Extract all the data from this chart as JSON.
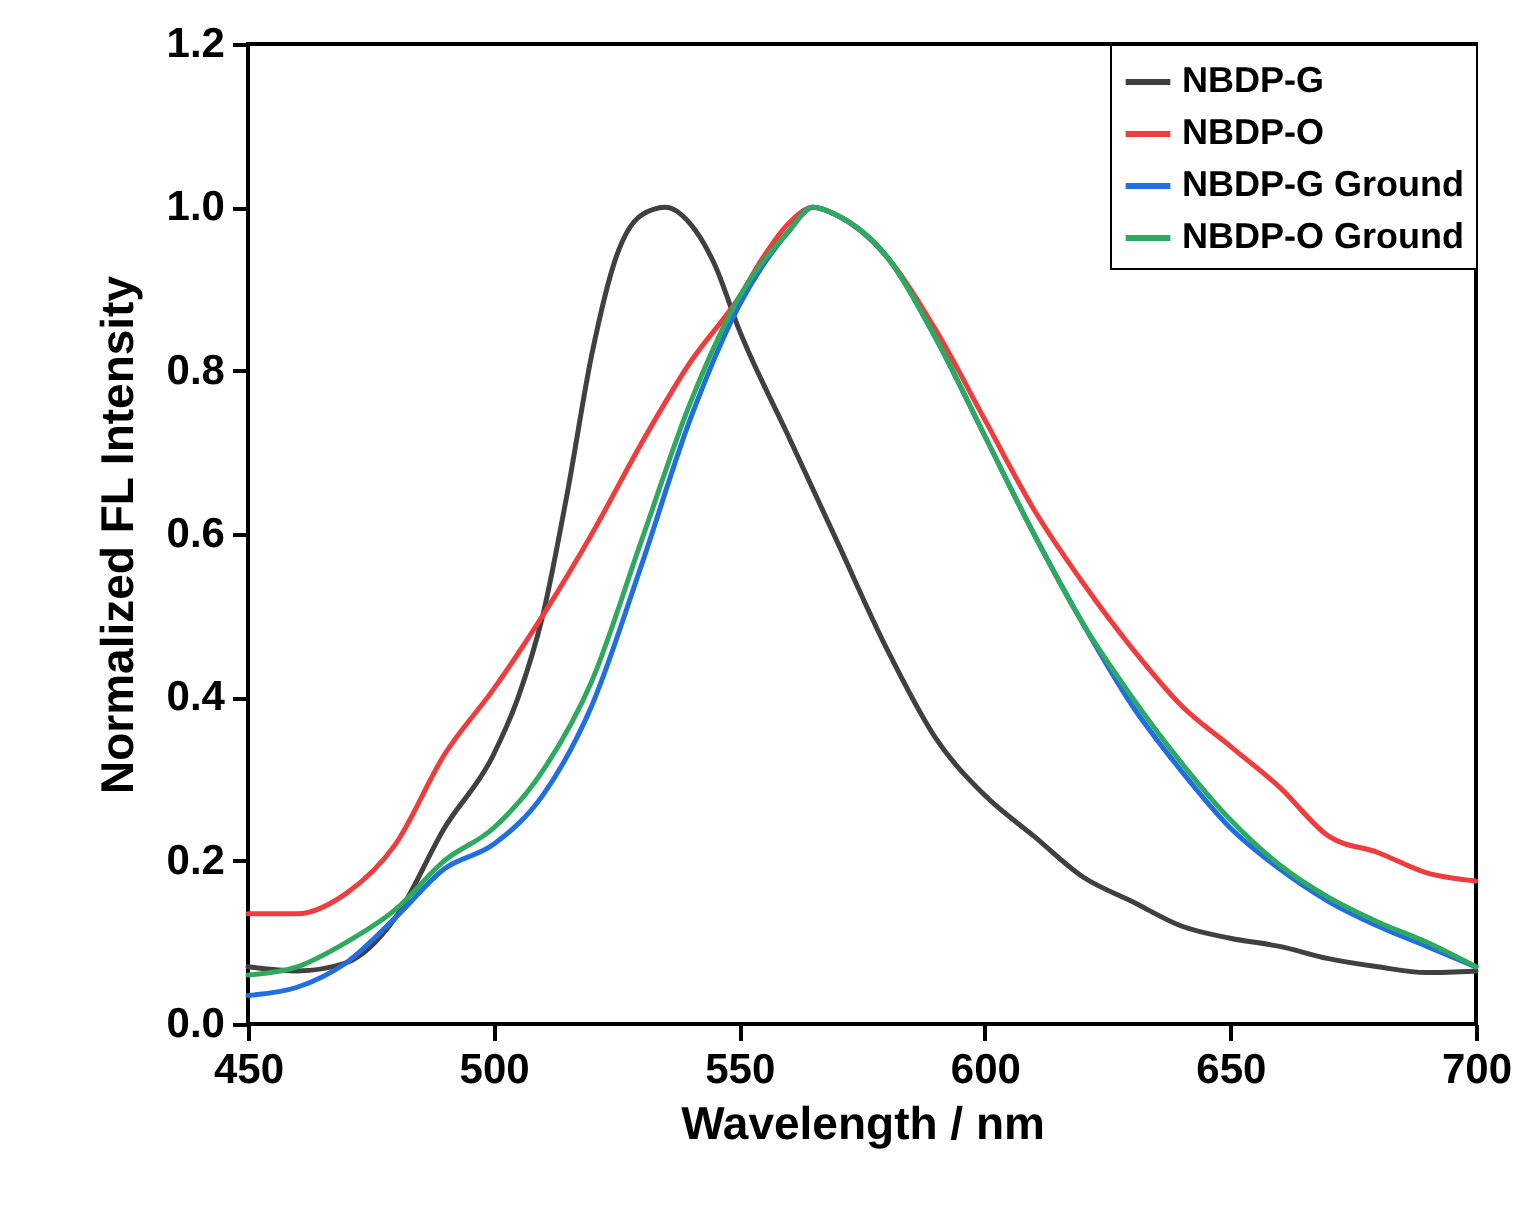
{
  "chart_data": {
    "type": "line",
    "xlabel": "Wavelength / nm",
    "ylabel": "Normalized FL Intensity",
    "xlim": [
      450,
      700
    ],
    "xticks": [
      450,
      500,
      550,
      600,
      650,
      700
    ],
    "ylim": [
      0,
      1.2
    ],
    "yticks": [
      {
        "value": 0,
        "label": "0.0"
      },
      0.2,
      0.4,
      0.6,
      0.8,
      {
        "value": 1,
        "label": "1.0"
      },
      1.2
    ],
    "legend": "top right",
    "grid": false,
    "series": [
      {
        "name": "NBDP-G",
        "color": "#404040",
        "x": [
          450,
          460,
          470,
          480,
          490,
          500,
          505,
          510,
          515,
          520,
          525,
          530,
          535,
          540,
          545,
          550,
          560,
          570,
          580,
          590,
          600,
          610,
          620,
          630,
          640,
          650,
          660,
          670,
          680,
          690,
          700
        ],
        "values": [
          0.07,
          0.065,
          0.075,
          0.13,
          0.24,
          0.33,
          0.4,
          0.5,
          0.65,
          0.82,
          0.94,
          0.99,
          1.0,
          0.98,
          0.93,
          0.85,
          0.72,
          0.59,
          0.46,
          0.35,
          0.28,
          0.23,
          0.18,
          0.15,
          0.12,
          0.105,
          0.095,
          0.08,
          0.07,
          0.063,
          0.065
        ]
      },
      {
        "name": "NBDP-O",
        "color": "#f03c3c",
        "x": [
          450,
          460,
          470,
          480,
          490,
          500,
          510,
          520,
          530,
          540,
          550,
          555,
          560,
          565,
          570,
          580,
          590,
          600,
          610,
          620,
          630,
          640,
          650,
          660,
          670,
          680,
          690,
          700
        ],
        "values": [
          0.135,
          0.135,
          0.16,
          0.22,
          0.33,
          0.41,
          0.5,
          0.6,
          0.71,
          0.81,
          0.89,
          0.94,
          0.98,
          1.0,
          0.99,
          0.94,
          0.85,
          0.74,
          0.63,
          0.54,
          0.46,
          0.39,
          0.34,
          0.29,
          0.23,
          0.21,
          0.185,
          0.175
        ]
      },
      {
        "name": "NBDP-G Ground",
        "color": "#1f6fe0",
        "x": [
          450,
          460,
          470,
          480,
          490,
          500,
          510,
          520,
          530,
          540,
          550,
          560,
          565,
          570,
          580,
          590,
          600,
          610,
          620,
          630,
          640,
          650,
          660,
          670,
          680,
          690,
          700
        ],
        "values": [
          0.035,
          0.045,
          0.075,
          0.13,
          0.19,
          0.22,
          0.28,
          0.39,
          0.56,
          0.74,
          0.88,
          0.97,
          1.0,
          0.99,
          0.94,
          0.84,
          0.72,
          0.6,
          0.49,
          0.39,
          0.31,
          0.24,
          0.19,
          0.15,
          0.12,
          0.095,
          0.07
        ]
      },
      {
        "name": "NBDP-O Ground",
        "color": "#2eaa5e",
        "x": [
          450,
          460,
          470,
          480,
          490,
          500,
          510,
          520,
          530,
          540,
          550,
          560,
          565,
          570,
          580,
          590,
          600,
          610,
          620,
          630,
          640,
          650,
          660,
          670,
          680,
          690,
          700
        ],
        "values": [
          0.06,
          0.07,
          0.1,
          0.14,
          0.2,
          0.24,
          0.31,
          0.42,
          0.59,
          0.76,
          0.89,
          0.97,
          1.0,
          0.99,
          0.94,
          0.84,
          0.72,
          0.6,
          0.49,
          0.4,
          0.32,
          0.25,
          0.195,
          0.155,
          0.125,
          0.1,
          0.07
        ]
      }
    ]
  }
}
